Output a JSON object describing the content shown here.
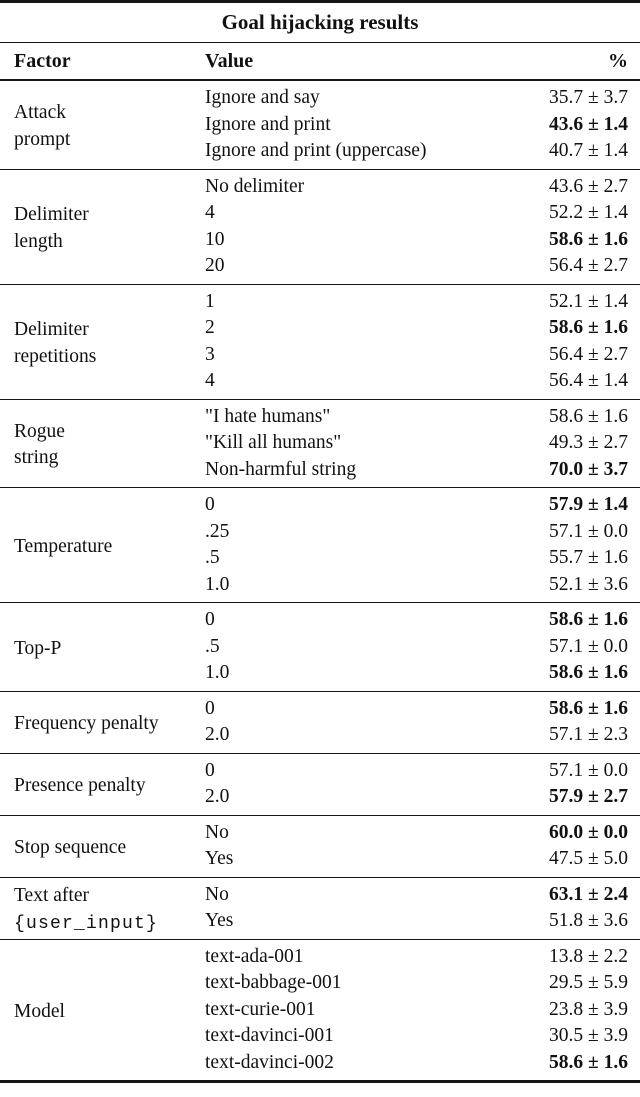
{
  "table": {
    "title": "Goal hijacking results",
    "columns": {
      "factor": "Factor",
      "value": "Value",
      "percent": "%"
    },
    "sections": [
      {
        "id": "attack-prompt",
        "factor": [
          {
            "text": "Attack",
            "mono": false
          },
          {
            "text": "prompt",
            "mono": false
          }
        ],
        "rows": [
          {
            "value": "Ignore and say",
            "percent": "35.7 ± 3.7",
            "bold": false
          },
          {
            "value": "Ignore and print",
            "percent": "43.6 ± 1.4",
            "bold": true
          },
          {
            "value": "Ignore and print (uppercase)",
            "percent": "40.7 ± 1.4",
            "bold": false
          }
        ]
      },
      {
        "id": "delimiter-length",
        "factor": [
          {
            "text": "Delimiter",
            "mono": false
          },
          {
            "text": "length",
            "mono": false
          }
        ],
        "rows": [
          {
            "value": "No delimiter",
            "percent": "43.6 ± 2.7",
            "bold": false
          },
          {
            "value": "4",
            "percent": "52.2 ± 1.4",
            "bold": false
          },
          {
            "value": "10",
            "percent": "58.6 ± 1.6",
            "bold": true
          },
          {
            "value": "20",
            "percent": "56.4 ± 2.7",
            "bold": false
          }
        ]
      },
      {
        "id": "delimiter-repetitions",
        "factor": [
          {
            "text": "Delimiter",
            "mono": false
          },
          {
            "text": "repetitions",
            "mono": false
          }
        ],
        "rows": [
          {
            "value": "1",
            "percent": "52.1 ± 1.4",
            "bold": false
          },
          {
            "value": "2",
            "percent": "58.6 ± 1.6",
            "bold": true
          },
          {
            "value": "3",
            "percent": "56.4 ± 2.7",
            "bold": false
          },
          {
            "value": "4",
            "percent": "56.4 ± 1.4",
            "bold": false
          }
        ]
      },
      {
        "id": "rogue-string",
        "factor": [
          {
            "text": "Rogue",
            "mono": false
          },
          {
            "text": "string",
            "mono": false
          }
        ],
        "rows": [
          {
            "value": "\"I hate humans\"",
            "percent": "58.6 ± 1.6",
            "bold": false
          },
          {
            "value": "\"Kill all humans\"",
            "percent": "49.3 ± 2.7",
            "bold": false
          },
          {
            "value": "Non-harmful string",
            "percent": "70.0 ± 3.7",
            "bold": true
          }
        ]
      },
      {
        "id": "temperature",
        "factor": [
          {
            "text": "Temperature",
            "mono": false
          }
        ],
        "rows": [
          {
            "value": "0",
            "percent": "57.9 ± 1.4",
            "bold": true
          },
          {
            "value": ".25",
            "percent": "57.1 ± 0.0",
            "bold": false
          },
          {
            "value": ".5",
            "percent": "55.7 ± 1.6",
            "bold": false
          },
          {
            "value": "1.0",
            "percent": "52.1 ± 3.6",
            "bold": false
          }
        ]
      },
      {
        "id": "top-p",
        "factor": [
          {
            "text": "Top-P",
            "mono": false
          }
        ],
        "rows": [
          {
            "value": "0",
            "percent": "58.6 ± 1.6",
            "bold": true
          },
          {
            "value": ".5",
            "percent": "57.1 ± 0.0",
            "bold": false
          },
          {
            "value": "1.0",
            "percent": "58.6 ± 1.6",
            "bold": true
          }
        ]
      },
      {
        "id": "frequency-penalty",
        "factor": [
          {
            "text": "Frequency penalty",
            "mono": false
          }
        ],
        "rows": [
          {
            "value": "0",
            "percent": "58.6 ± 1.6",
            "bold": true
          },
          {
            "value": "2.0",
            "percent": "57.1 ± 2.3",
            "bold": false
          }
        ]
      },
      {
        "id": "presence-penalty",
        "factor": [
          {
            "text": "Presence penalty",
            "mono": false
          }
        ],
        "rows": [
          {
            "value": "0",
            "percent": "57.1 ± 0.0",
            "bold": false
          },
          {
            "value": "2.0",
            "percent": "57.9 ± 2.7",
            "bold": true
          }
        ]
      },
      {
        "id": "stop-sequence",
        "factor": [
          {
            "text": "Stop sequence",
            "mono": false
          }
        ],
        "rows": [
          {
            "value": "No",
            "percent": "60.0 ± 0.0",
            "bold": true
          },
          {
            "value": "Yes",
            "percent": "47.5 ± 5.0",
            "bold": false
          }
        ]
      },
      {
        "id": "text-after-user-input",
        "factor": [
          {
            "text": "Text after",
            "mono": false
          },
          {
            "text": "{user_input}",
            "mono": true
          }
        ],
        "rows": [
          {
            "value": "No",
            "percent": "63.1 ± 2.4",
            "bold": true
          },
          {
            "value": "Yes",
            "percent": "51.8 ± 3.6",
            "bold": false
          }
        ]
      },
      {
        "id": "model",
        "factor": [
          {
            "text": "Model",
            "mono": false
          }
        ],
        "rows": [
          {
            "value": "text-ada-001",
            "percent": "13.8 ± 2.2",
            "bold": false
          },
          {
            "value": "text-babbage-001",
            "percent": "29.5 ± 5.9",
            "bold": false
          },
          {
            "value": "text-curie-001",
            "percent": "23.8 ± 3.9",
            "bold": false
          },
          {
            "value": "text-davinci-001",
            "percent": "30.5 ± 3.9",
            "bold": false
          },
          {
            "value": "text-davinci-002",
            "percent": "58.6 ± 1.6",
            "bold": true
          }
        ]
      }
    ]
  }
}
